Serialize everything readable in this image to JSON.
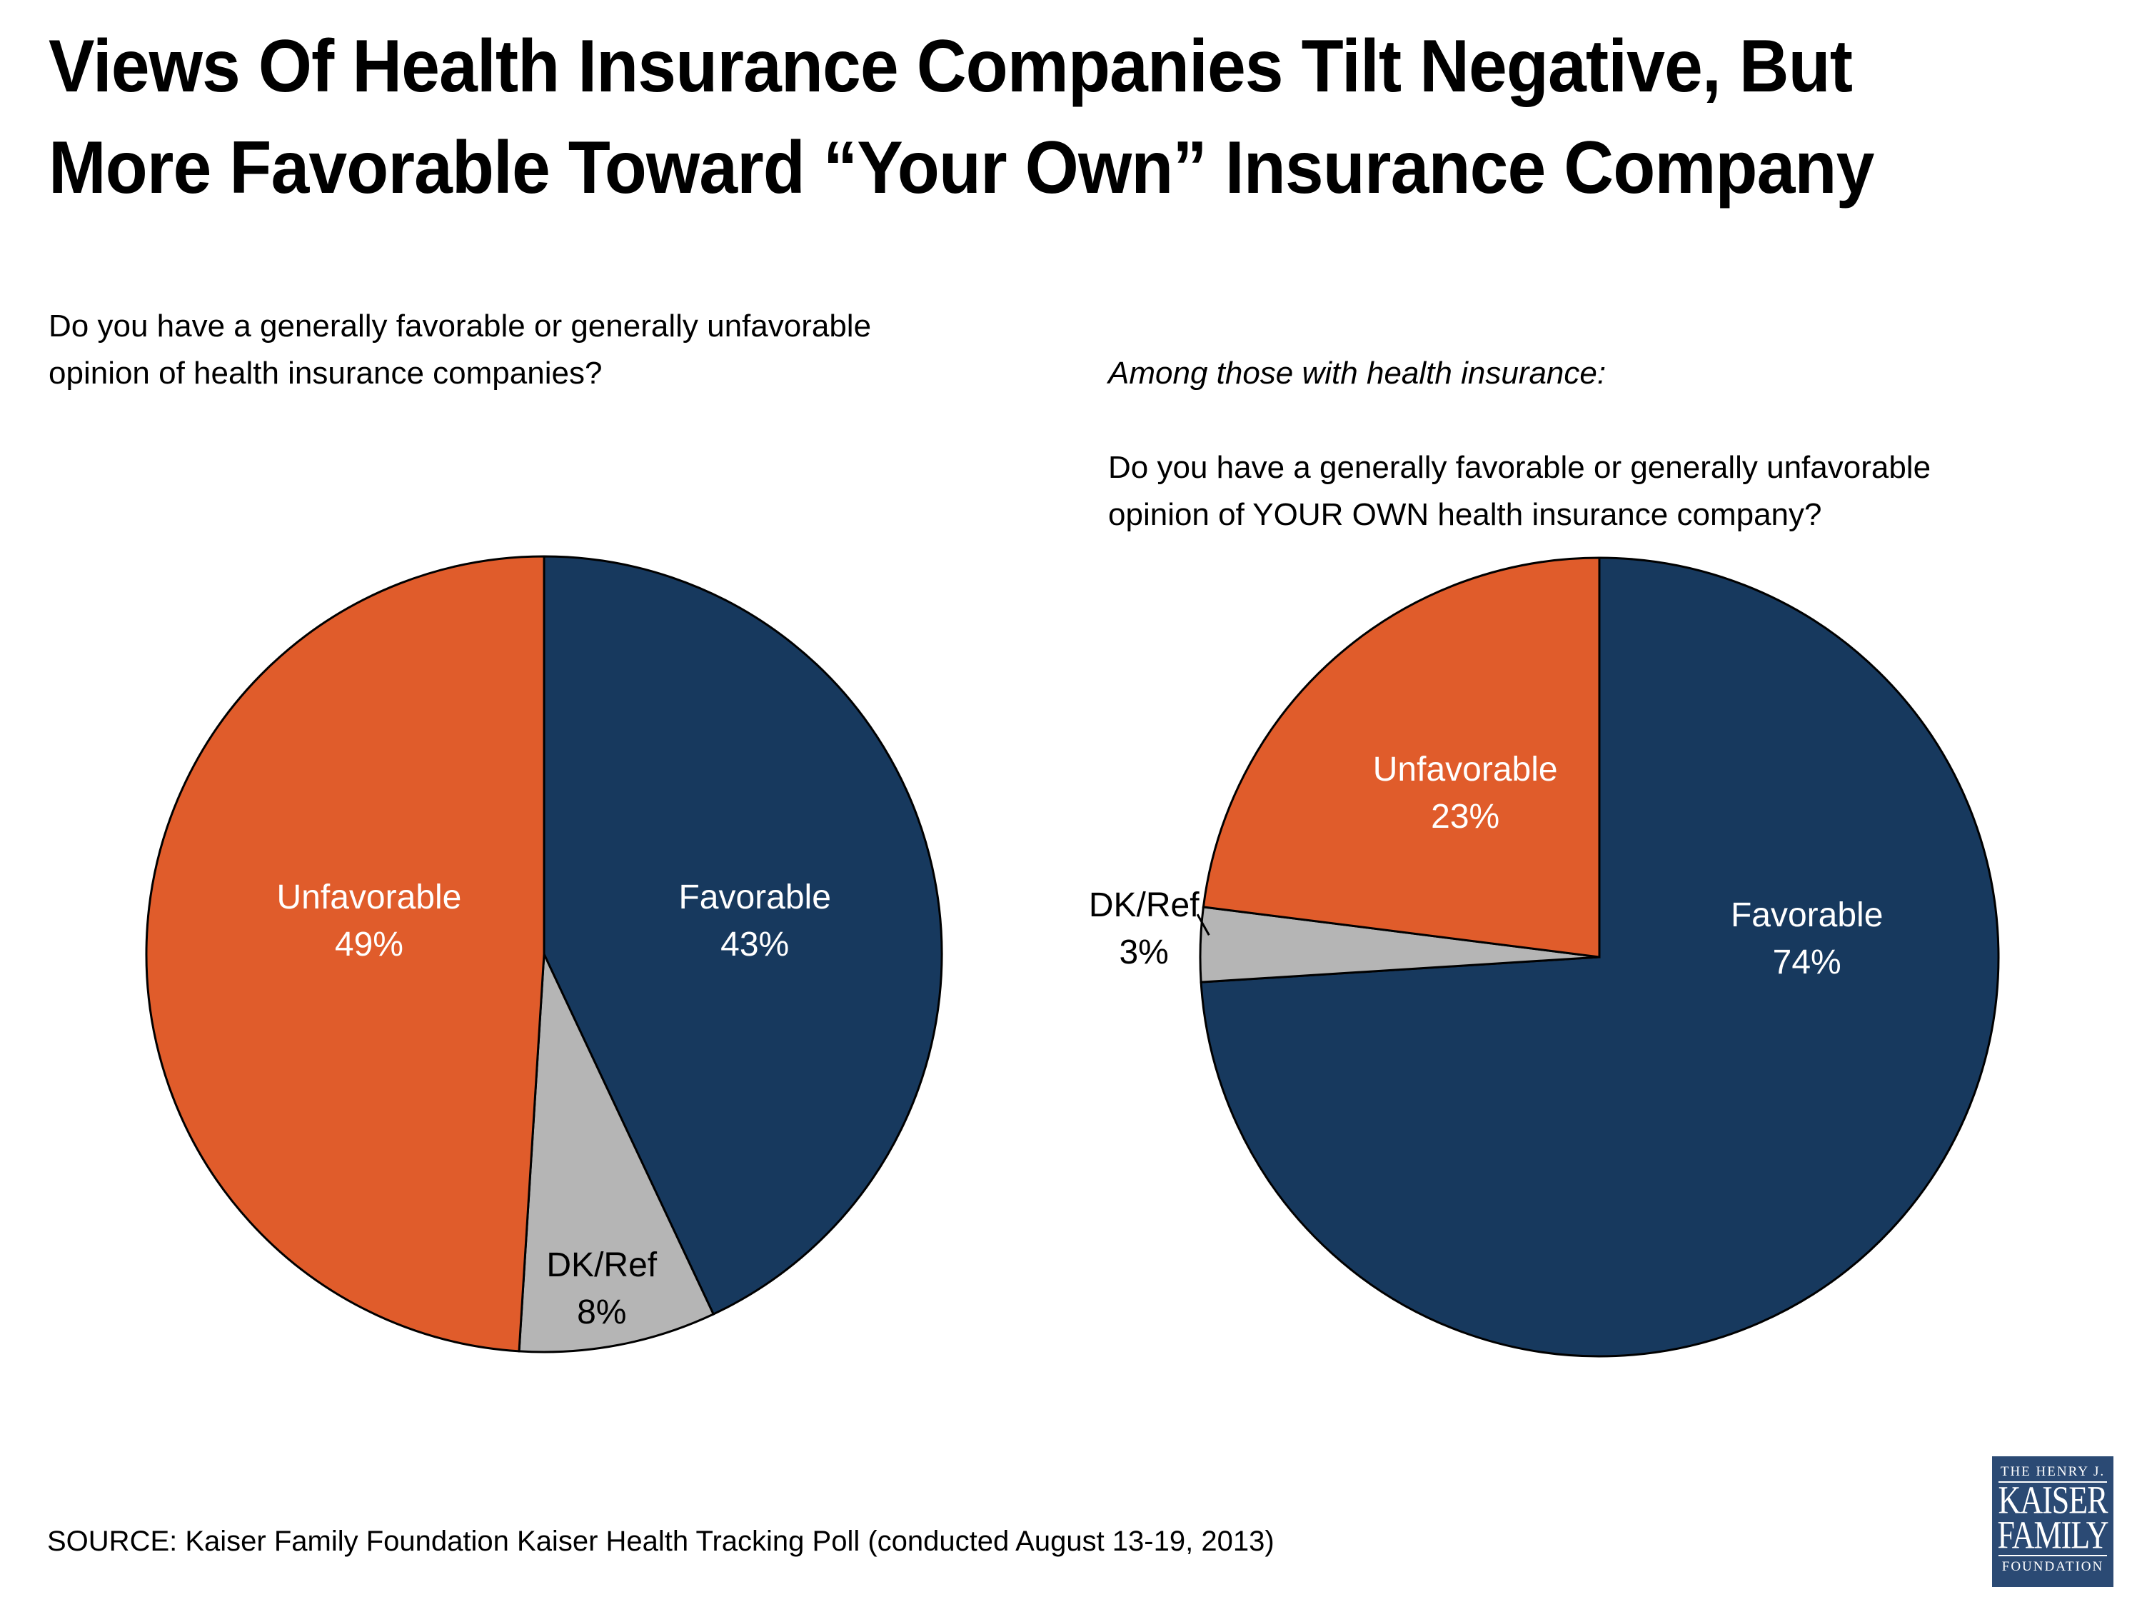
{
  "slide": {
    "title_line1": "Views Of Health Insurance Companies Tilt Negative, But",
    "title_line2": "More Favorable Toward “Your Own” Insurance Company",
    "source": "SOURCE: Kaiser Family Foundation Kaiser Health Tracking Poll (conducted August 13-19, 2013)"
  },
  "questions": {
    "left": [
      "Do you have a generally favorable or generally unfavorable",
      "opinion of health insurance companies?"
    ],
    "right_intro": "Among those with health insurance:",
    "right": [
      "Do you have a generally favorable or generally unfavorable",
      "opinion of YOUR OWN health insurance company?"
    ]
  },
  "logo": {
    "top": "THE HENRY J.",
    "name1": "KAISER",
    "name2": "FAMILY",
    "bottom": "FOUNDATION"
  },
  "colors": {
    "navy": "#17395E",
    "orange": "#E05C2B",
    "gray": "#B5B5B5",
    "white": "#FFFFFF",
    "black": "#000000",
    "outline": "#000000",
    "logo_blue": "#2B4A74"
  },
  "chart_data": [
    {
      "type": "pie",
      "title": "Do you have a generally favorable or generally unfavorable opinion of health insurance companies?",
      "units": "%",
      "start_angle_deg": 0,
      "clockwise": true,
      "legend": "none",
      "slices": [
        {
          "label": "Favorable",
          "value": 43,
          "color": "navy",
          "text_color": "white",
          "label_dx": 0.53,
          "label_dy": -0.115
        },
        {
          "label": "DK/Ref",
          "value": 8,
          "color": "gray",
          "text_color": "black",
          "label_dx": 0.145,
          "label_dy": 0.81
        },
        {
          "label": "Unfavorable",
          "value": 49,
          "color": "orange",
          "text_color": "white",
          "label_dx": -0.44,
          "label_dy": -0.115
        }
      ]
    },
    {
      "type": "pie",
      "title": "Among those with health insurance: Do you have a generally favorable or generally unfavorable opinion of YOUR OWN health insurance company?",
      "units": "%",
      "start_angle_deg": 0,
      "clockwise": true,
      "legend": "none",
      "slices": [
        {
          "label": "Favorable",
          "value": 74,
          "color": "navy",
          "text_color": "white",
          "label_dx": 0.52,
          "label_dy": -0.077
        },
        {
          "label": "DK/Ref",
          "value": 3,
          "color": "gray",
          "text_color": "black",
          "label_dx": -1.141,
          "label_dy": -0.102,
          "outside": true,
          "leader": [
            -1.007,
            -0.107,
            -0.978,
            -0.055
          ]
        },
        {
          "label": "Unfavorable",
          "value": 23,
          "color": "orange",
          "text_color": "white",
          "label_dx": -0.336,
          "label_dy": -0.442
        }
      ]
    }
  ]
}
